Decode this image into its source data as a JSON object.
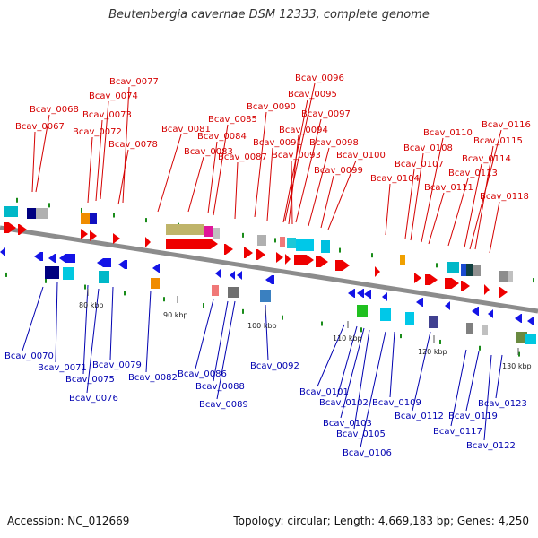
{
  "title": "Beutenbergia cavernae DSM 12333, complete genome",
  "footer": {
    "accession": "Accession: NC_012669",
    "summary": "Topology: circular; Length: 4,669,183 bp; Genes: 4,250"
  },
  "colors": {
    "forward_label": "#d40000",
    "reverse_label": "#0000b0",
    "backbone": "#8c8c8c"
  },
  "kbp_ticks": [
    "80 kbp",
    "90 kbp",
    "100 kbp",
    "110 kbp",
    "120 kbp",
    "130 kbp"
  ],
  "top_labels": [
    "Bcav_0068",
    "Bcav_0067",
    "Bcav_0074",
    "Bcav_0073",
    "Bcav_0072",
    "Bcav_0077",
    "Bcav_0078",
    "Bcav_0081",
    "Bcav_0085",
    "Bcav_0084",
    "Bcav_0083",
    "Bcav_0090",
    "Bcav_0087",
    "Bcav_0091",
    "Bcav_0096",
    "Bcav_0095",
    "Bcav_0097",
    "Bcav_0094",
    "Bcav_0093",
    "Bcav_0098",
    "Bcav_0099",
    "Bcav_0100",
    "Bcav_0104",
    "Bcav_0107",
    "Bcav_0108",
    "Bcav_0110",
    "Bcav_0111",
    "Bcav_0113",
    "Bcav_0114",
    "Bcav_0115",
    "Bcav_0116",
    "Bcav_0118"
  ],
  "bottom_labels": [
    "Bcav_0070",
    "Bcav_0071",
    "Bcav_0075",
    "Bcav_0076",
    "Bcav_0079",
    "Bcav_0082",
    "Bcav_0086",
    "Bcav_0088",
    "Bcav_0089",
    "Bcav_0092",
    "Bcav_0101",
    "Bcav_0102",
    "Bcav_0103",
    "Bcav_0105",
    "Bcav_0106",
    "Bcav_0109",
    "Bcav_0112",
    "Bcav_0117",
    "Bcav_0119",
    "Bcav_0122",
    "Bcav_0123"
  ]
}
